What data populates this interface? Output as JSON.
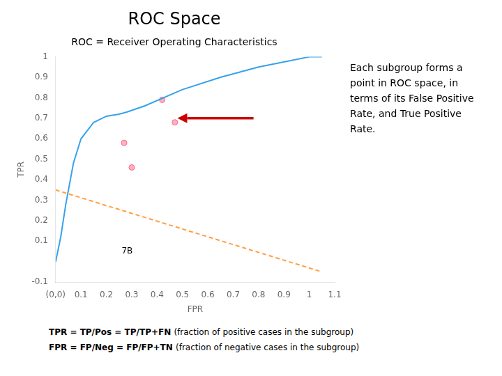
{
  "chart_data": {
    "type": "scatter",
    "title": "ROC Space",
    "subtitle": "ROC = Receiver Operating Characteristics",
    "xlabel": "FPR",
    "ylabel": "TPR",
    "series": [
      {
        "type": "line",
        "x": [
          0.0,
          0.02,
          0.04,
          0.07,
          0.1,
          0.15,
          0.2,
          0.25,
          0.28,
          0.35,
          0.5,
          0.65,
          0.8,
          0.92,
          1.0,
          1.05
        ],
        "values": [
          0.0,
          0.12,
          0.28,
          0.48,
          0.6,
          0.68,
          0.71,
          0.72,
          0.73,
          0.76,
          0.84,
          0.9,
          0.95,
          0.98,
          1.0,
          1.0
        ],
        "line_style": "solid"
      },
      {
        "type": "scatter",
        "x": [
          0.27,
          0.42,
          0.47,
          0.3
        ],
        "values": [
          0.58,
          0.79,
          0.68,
          0.46
        ],
        "marker": "circle"
      },
      {
        "type": "line",
        "x": [
          0.0,
          1.05
        ],
        "values": [
          0.35,
          -0.05
        ],
        "line_style": "dashed"
      }
    ],
    "xlim": [
      0,
      1.1
    ],
    "xticks": [
      {
        "value": 0,
        "label": "(0,0)"
      },
      0.1,
      0.2,
      0.3,
      0.4,
      0.5,
      0.6,
      0.7,
      0.8,
      0.9,
      1,
      1.1
    ],
    "ylim": [
      -0.1,
      1.0
    ],
    "yticks": [
      -0.1,
      {
        "value": 0,
        "label": null
      },
      0.1,
      0.2,
      0.3,
      0.4,
      0.5,
      0.6,
      0.7,
      0.8,
      0.9,
      1
    ],
    "grid": false,
    "annotations": [
      {
        "text": "7B",
        "x": 0.26,
        "y": 0.04
      }
    ],
    "arrow": {
      "from": [
        0.78,
        0.7
      ],
      "to": [
        0.48,
        0.7
      ],
      "color": "#cc0000"
    },
    "annotation_text": "Each subgroup forms a\npoint in ROC space, in\nterms of its False Positive\nRate, and True Positive\nRate.",
    "footnotes": [
      {
        "bold": "TPR = TP/Pos = TP/TP+FN ",
        "text": "(fraction of positive cases in the subgroup)"
      },
      {
        "bold": "FPR = FP/Neg = FP/FP+TN ",
        "text": "(fraction of negative cases in the subgroup)"
      }
    ]
  }
}
